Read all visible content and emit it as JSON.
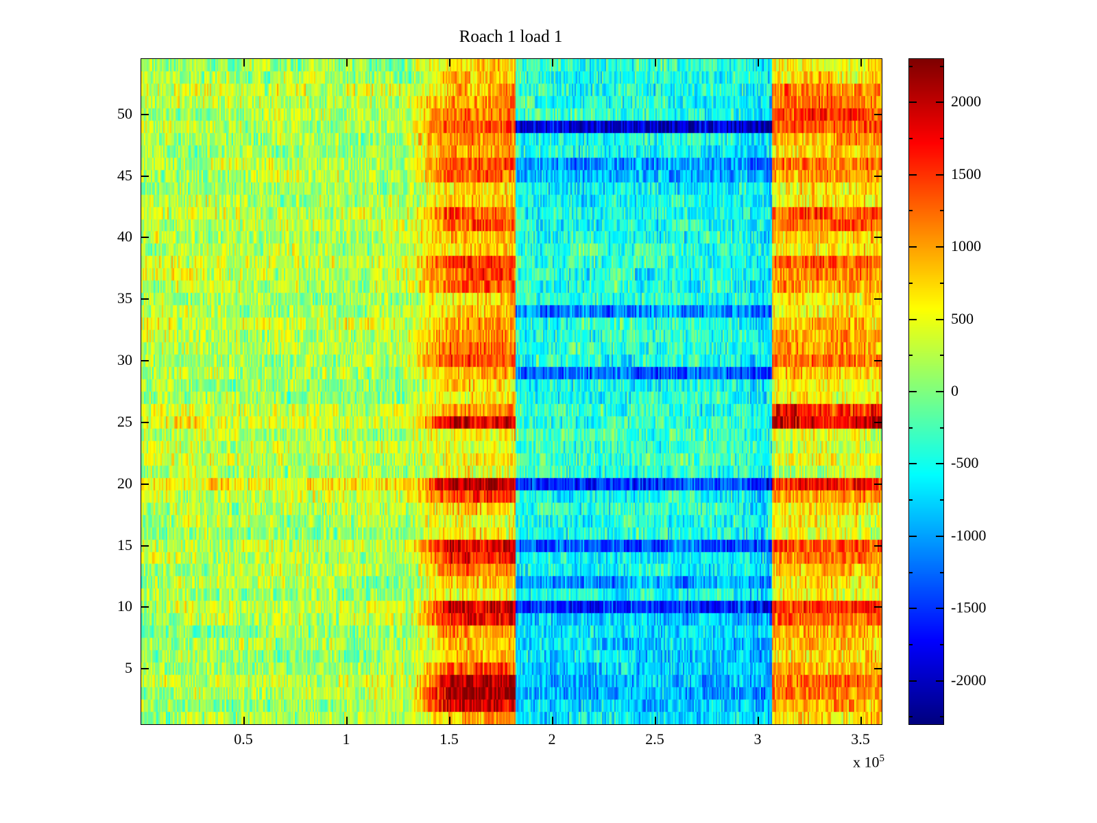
{
  "figure": {
    "background": "#ffffff"
  },
  "chart_data": {
    "type": "heatmap",
    "title": "Roach 1 load 1",
    "xlabel": "",
    "ylabel": "",
    "x_range": [
      0,
      360000
    ],
    "x_multiplier": {
      "base": "x 10",
      "exponent": "5"
    },
    "x_tick_values": [
      50000,
      100000,
      150000,
      200000,
      250000,
      300000,
      350000
    ],
    "x_tick_labels": [
      "0.5",
      "1",
      "1.5",
      "2",
      "2.5",
      "3",
      "3.5"
    ],
    "y_range": [
      1,
      54
    ],
    "n_rows": 54,
    "y_tick_values": [
      5,
      10,
      15,
      20,
      25,
      30,
      35,
      40,
      45,
      50
    ],
    "y_tick_labels": [
      "5",
      "10",
      "15",
      "20",
      "25",
      "30",
      "35",
      "40",
      "45",
      "50"
    ],
    "grid": false,
    "colormap": "jet",
    "colormap_stops": [
      "#00008F",
      "#0000FF",
      "#00FFFF",
      "#80FF80",
      "#FFFF00",
      "#FF0000",
      "#800000"
    ],
    "color_axis": [
      -2300,
      2300
    ],
    "colorbar": {
      "position": "right",
      "min": -2300,
      "max": 2300,
      "tick_values": [
        2000,
        1500,
        1000,
        500,
        0,
        -500,
        -1000,
        -1500,
        -2000
      ],
      "tick_labels": [
        "2000",
        "1500",
        "1000",
        "500",
        "0",
        "-500",
        "-1000",
        "-1500",
        "-2000"
      ],
      "minor_step": 250
    },
    "regions": {
      "a_end": 130000,
      "blend_end": 150000,
      "b_end": 182000,
      "c_end": 307000,
      "dip_start": 296000,
      "dip_value": -180
    },
    "noise": {
      "speckle": 400,
      "fine": 180,
      "patch": 150,
      "patch_width": 24
    },
    "seed": 7,
    "row_profiles_note": "per data row bottom-to-top: mean value in x-bands A[0-1.3e5] B[1.5-1.82e5] C[1.82-3.07e5] D[3.07-3.6e5]",
    "row_profiles": [
      [
        150,
        900,
        -650,
        700
      ],
      [
        100,
        1900,
        -800,
        900
      ],
      [
        250,
        2200,
        -900,
        1200
      ],
      [
        300,
        2100,
        -850,
        1300
      ],
      [
        150,
        1400,
        -750,
        1000
      ],
      [
        100,
        800,
        -700,
        700
      ],
      [
        150,
        900,
        -750,
        800
      ],
      [
        100,
        1000,
        -650,
        900
      ],
      [
        200,
        1800,
        -800,
        1300
      ],
      [
        250,
        2000,
        -1600,
        1500
      ],
      [
        100,
        700,
        -500,
        600
      ],
      [
        150,
        800,
        -1000,
        700
      ],
      [
        200,
        1200,
        -500,
        900
      ],
      [
        300,
        1700,
        -600,
        1200
      ],
      [
        350,
        1800,
        -1300,
        1400
      ],
      [
        100,
        600,
        -400,
        400
      ],
      [
        150,
        500,
        -450,
        500
      ],
      [
        200,
        700,
        -400,
        600
      ],
      [
        300,
        1400,
        -500,
        900
      ],
      [
        600,
        2000,
        -1500,
        1600
      ],
      [
        200,
        500,
        -350,
        300
      ],
      [
        350,
        600,
        -300,
        400
      ],
      [
        300,
        500,
        -350,
        300
      ],
      [
        200,
        600,
        -300,
        400
      ],
      [
        450,
        1900,
        -350,
        1900
      ],
      [
        300,
        1000,
        -400,
        1600
      ],
      [
        150,
        600,
        -450,
        500
      ],
      [
        100,
        700,
        -500,
        600
      ],
      [
        200,
        1000,
        -1250,
        800
      ],
      [
        250,
        1500,
        -450,
        1200
      ],
      [
        300,
        1400,
        -400,
        1000
      ],
      [
        250,
        1100,
        -400,
        900
      ],
      [
        350,
        1000,
        -350,
        800
      ],
      [
        200,
        700,
        -1100,
        600
      ],
      [
        150,
        800,
        -450,
        700
      ],
      [
        250,
        1300,
        -400,
        1000
      ],
      [
        300,
        1400,
        -450,
        1200
      ],
      [
        350,
        1500,
        -400,
        1300
      ],
      [
        200,
        800,
        -350,
        700
      ],
      [
        250,
        900,
        -400,
        800
      ],
      [
        300,
        1300,
        -450,
        1200
      ],
      [
        350,
        1400,
        -400,
        1300
      ],
      [
        200,
        800,
        -500,
        700
      ],
      [
        150,
        700,
        -550,
        600
      ],
      [
        250,
        1200,
        -900,
        1100
      ],
      [
        200,
        1300,
        -1100,
        1200
      ],
      [
        150,
        1100,
        -500,
        800
      ],
      [
        200,
        1200,
        -450,
        900
      ],
      [
        250,
        1400,
        -1900,
        1400
      ],
      [
        200,
        1200,
        -400,
        1500
      ],
      [
        250,
        1100,
        -450,
        1300
      ],
      [
        300,
        1000,
        -400,
        1100
      ],
      [
        150,
        800,
        -400,
        700
      ],
      [
        100,
        700,
        -350,
        500
      ]
    ]
  }
}
